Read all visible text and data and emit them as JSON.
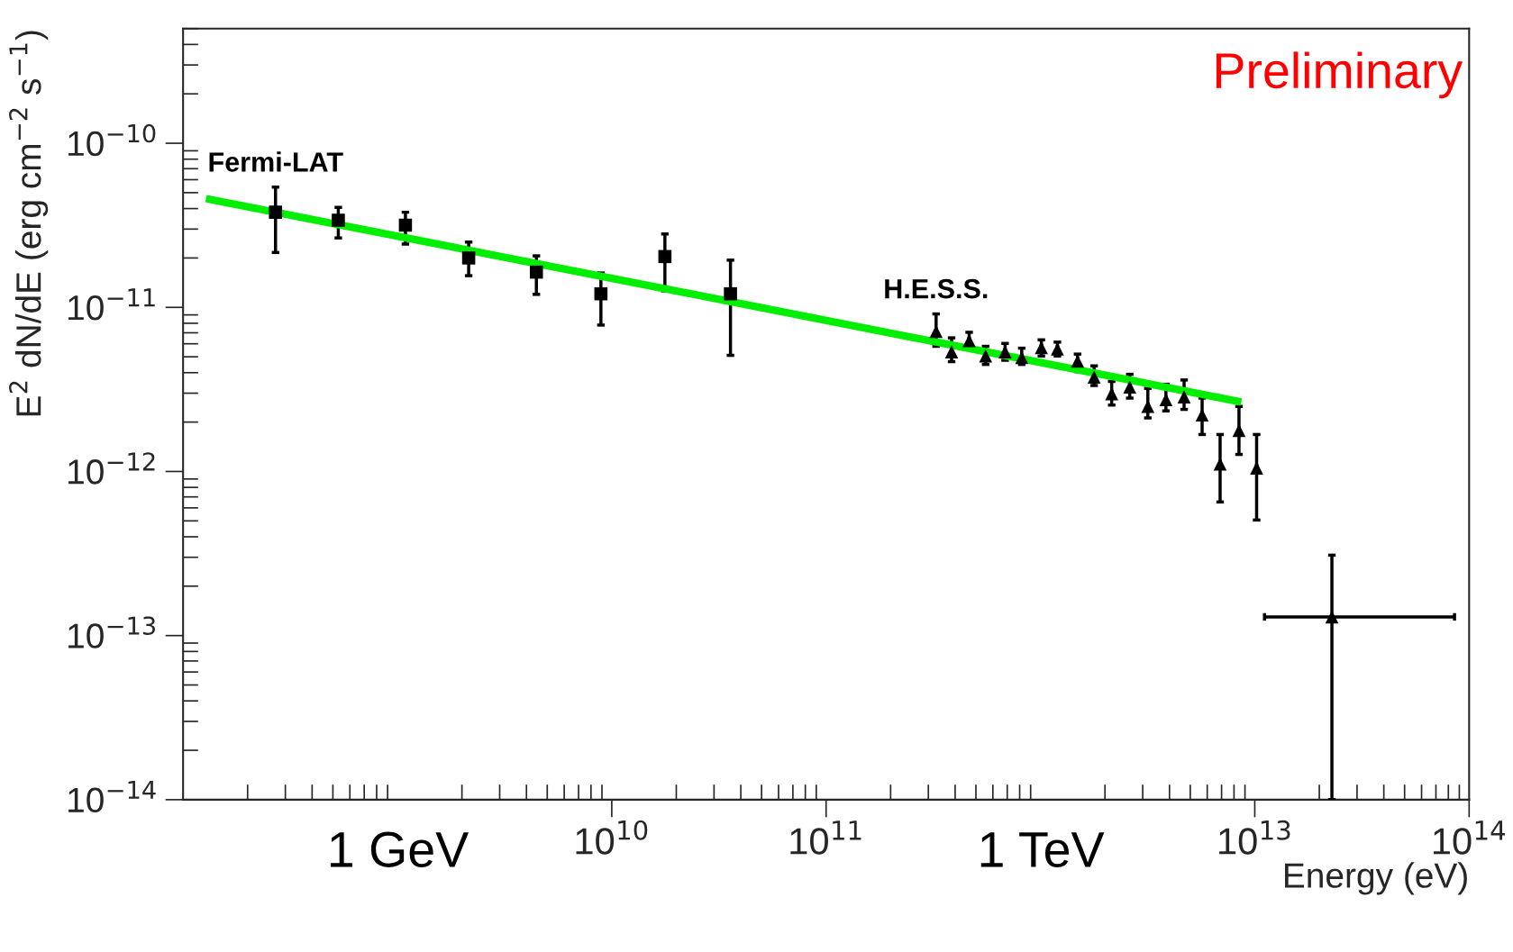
{
  "chart_data": {
    "type": "scatter",
    "xlabel": "Energy (eV)",
    "ylabel": "E$^{2}$ dN/dE (erg cm$^{−2}$ s$^{−1}$)",
    "log": "xy",
    "grid": false,
    "legend": false,
    "xlim": [
      100000000.0,
      100000000000000.0
    ],
    "ylim": [
      1e-14,
      5e-10
    ],
    "xticks": [
      {
        "value": 10000000000.0,
        "label": "10$^{10}$"
      },
      {
        "value": 100000000000.0,
        "label": "10$^{11}$"
      },
      {
        "value": 10000000000000.0,
        "label": "10$^{13}$"
      },
      {
        "value": 100000000000000.0,
        "label": "10$^{14}$"
      }
    ],
    "yticks": [
      {
        "value": 1e-14,
        "label": "10$^{−14}$"
      },
      {
        "value": 1e-13,
        "label": "10$^{−13}$"
      },
      {
        "value": 1e-12,
        "label": "10$^{−12}$"
      },
      {
        "value": 1e-11,
        "label": "10$^{−11}$"
      },
      {
        "value": 1e-10,
        "label": "10$^{−10}$"
      }
    ],
    "annotations": [
      "Preliminary",
      "1 GeV",
      "1 TeV"
    ],
    "series": [
      {
        "name": "Fermi-LAT",
        "type": "scatter",
        "marker": "square",
        "color": "#000000",
        "x": [
          270000000.0,
          530000000.0,
          1090000000.0,
          2150000000.0,
          4450000000.0,
          8900000000.0,
          17700000000.0,
          35800000000.0
        ],
        "values": [
          3.8e-11,
          3.4e-11,
          3.17e-11,
          2e-11,
          1.64e-11,
          1.21e-11,
          2.04e-11,
          1.21e-11
        ],
        "errors": [
          [
            2.16e-11,
            5.4e-11
          ],
          [
            2.65e-11,
            4.07e-11
          ],
          [
            2.43e-11,
            3.8e-11
          ],
          [
            1.56e-11,
            2.5e-11
          ],
          [
            1.2e-11,
            2.06e-11
          ],
          [
            7.8e-12,
            1.62e-11
          ],
          [
            1.26e-11,
            2.8e-11
          ],
          [
            5.1e-12,
            1.94e-11
          ]
        ]
      },
      {
        "name": "H.E.S.S.",
        "type": "scatter",
        "marker": "triangle",
        "color": "#000000",
        "x": [
          326000000000.0,
          385000000000.0,
          465000000000.0,
          555000000000.0,
          684000000000.0,
          818000000000.0,
          1010000000000.0,
          1200000000000.0,
          1490000000000.0,
          1780000000000.0,
          2150000000000.0,
          2610000000000.0,
          3170000000000.0,
          3850000000000.0,
          4680000000000.0,
          5680000000000.0,
          6890000000000.0,
          8440000000000.0,
          10200000000000.0,
          22900000000000.0
        ],
        "values": [
          7.13e-12,
          5.36e-12,
          6.27e-12,
          5.05e-12,
          5.36e-12,
          4.95e-12,
          5.68e-12,
          5.57e-12,
          4.7e-12,
          3.76e-12,
          2.97e-12,
          3.27e-12,
          2.49e-12,
          2.74e-12,
          2.85e-12,
          2.21e-12,
          1.11e-12,
          1.78e-12,
          1.05e-12,
          1.3e-13
        ],
        "errors": [
          [
            5.79e-12,
            9.12e-12
          ],
          [
            4.67e-12,
            6.52e-12
          ],
          [
            5.57e-12,
            7.05e-12
          ],
          [
            4.49e-12,
            5.79e-12
          ],
          [
            4.76e-12,
            6.03e-12
          ],
          [
            4.49e-12,
            5.64e-12
          ],
          [
            5.05e-12,
            6.34e-12
          ],
          [
            5.05e-12,
            6.14e-12
          ],
          [
            4.06e-12,
            5.19e-12
          ],
          [
            3.34e-12,
            4.4e-12
          ],
          [
            2.54e-12,
            3.54e-12
          ],
          [
            2.8e-12,
            3.91e-12
          ],
          [
            2.12e-12,
            3.21e-12
          ],
          [
            2.34e-12,
            3.4e-12
          ],
          [
            2.39e-12,
            3.61e-12
          ],
          [
            1.68e-12,
            2.8e-12
          ],
          [
            6.52e-13,
            1.68e-12
          ],
          [
            1.27e-12,
            2.49e-12
          ],
          [
            5.06e-13,
            1.68e-12
          ],
          [
            1e-14,
            3.09e-13
          ]
        ],
        "xerrors": [
          null,
          null,
          null,
          null,
          null,
          null,
          null,
          null,
          null,
          null,
          null,
          null,
          null,
          null,
          null,
          null,
          null,
          null,
          null,
          [
            11100000000000.0,
            85500000000000.0
          ]
        ]
      },
      {
        "type": "line",
        "color": "#00ee00",
        "marker": "none",
        "line_style": "solid",
        "x": [
          128000000.0,
          8650000000000.0
        ],
        "values": [
          4.6e-11,
          2.65e-12
        ]
      }
    ]
  }
}
